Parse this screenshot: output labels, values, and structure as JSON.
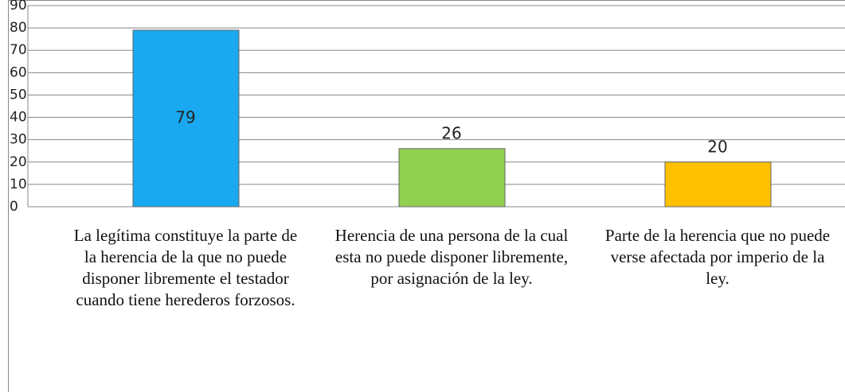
{
  "chart_data": {
    "type": "bar",
    "categories": [
      "La legítima constituye la parte de la herencia de la que no puede disponer libremente el testador cuando tiene herederos forzosos.",
      "Herencia de una persona de la cual esta no puede disponer libremente, por asignación de la ley.",
      "Parte de la herencia que no puede verse afectada por imperio de la ley."
    ],
    "values": [
      79,
      26,
      20
    ],
    "colors": [
      "#1aa9f0",
      "#92d050",
      "#ffc000"
    ],
    "ylim": [
      0,
      90
    ],
    "yticks": [
      0,
      10,
      20,
      30,
      40,
      50,
      60,
      70,
      80,
      90
    ],
    "grid": true
  }
}
